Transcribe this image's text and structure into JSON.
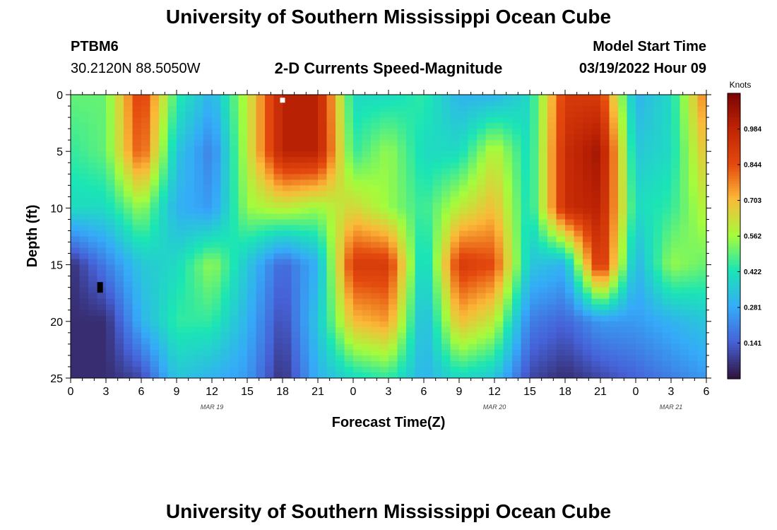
{
  "header": {
    "title": "University of Southern Mississippi Ocean Cube",
    "station": "PTBM6",
    "coords": "30.2120N  88.5050W",
    "subtitle": "2-D Currents Speed-Magnitude",
    "model_label": "Model Start Time",
    "model_time": "03/19/2022 Hour 09"
  },
  "footer": {
    "title": "University of Southern Mississippi Ocean Cube"
  },
  "chart_data": {
    "type": "heatmap",
    "title": "2-D Currents Speed-Magnitude",
    "xlabel": "Forecast Time(Z)",
    "ylabel": "Depth (ft)",
    "x_range_hours": [
      0,
      54
    ],
    "x_tick_labels": [
      "0",
      "3",
      "6",
      "9",
      "12",
      "15",
      "18",
      "21",
      "0",
      "3",
      "6",
      "9",
      "12",
      "15",
      "18",
      "21",
      "0",
      "3",
      "6"
    ],
    "date_labels": [
      {
        "label": "MAR 19",
        "hour": 12
      },
      {
        "label": "MAR 20",
        "hour": 36
      },
      {
        "label": "MAR 21",
        "hour": 51
      }
    ],
    "ylim": [
      0,
      25
    ],
    "y_ticks": [
      0,
      5,
      10,
      15,
      20,
      25
    ],
    "colorbar": {
      "unit": "Knots",
      "range": [
        0,
        1.125
      ],
      "ticks": [
        "0.984",
        "0.844",
        "0.703",
        "0.562",
        "0.422",
        "0.281",
        "0.141"
      ],
      "tick_values": [
        0.984,
        0.844,
        0.703,
        0.562,
        0.422,
        0.281,
        0.141
      ]
    },
    "depths_ft": [
      0,
      5,
      10,
      15,
      20,
      25
    ],
    "forecast_hours": [
      0,
      3,
      6,
      9,
      12,
      15,
      18,
      21,
      24,
      27,
      30,
      33,
      36,
      39,
      42,
      45,
      48,
      51,
      54
    ],
    "speed_knots": [
      [
        0.5,
        0.5,
        0.9,
        0.45,
        0.3,
        0.6,
        1.0,
        1.0,
        0.4,
        0.4,
        0.45,
        0.3,
        0.3,
        0.4,
        0.9,
        0.9,
        0.3,
        0.4,
        0.8
      ],
      [
        0.45,
        0.5,
        0.85,
        0.35,
        0.2,
        0.6,
        1.0,
        1.0,
        0.45,
        0.55,
        0.4,
        0.4,
        0.6,
        0.4,
        0.95,
        1.05,
        0.35,
        0.4,
        0.7
      ],
      [
        0.4,
        0.4,
        0.55,
        0.3,
        0.25,
        0.55,
        0.6,
        0.55,
        0.65,
        0.55,
        0.45,
        0.6,
        0.7,
        0.4,
        0.95,
        1.0,
        0.4,
        0.45,
        0.6
      ],
      [
        0.05,
        0.2,
        0.35,
        0.4,
        0.55,
        0.35,
        0.15,
        0.3,
        0.9,
        0.9,
        0.35,
        0.9,
        0.85,
        0.35,
        0.3,
        0.95,
        0.3,
        0.55,
        0.5
      ],
      [
        0.05,
        0.05,
        0.3,
        0.45,
        0.45,
        0.3,
        0.1,
        0.35,
        0.7,
        0.75,
        0.3,
        0.7,
        0.6,
        0.2,
        0.15,
        0.25,
        0.25,
        0.3,
        0.35
      ],
      [
        0.05,
        0.05,
        0.1,
        0.35,
        0.3,
        0.25,
        0.05,
        0.3,
        0.4,
        0.45,
        0.3,
        0.4,
        0.35,
        0.1,
        0.05,
        0.1,
        0.15,
        0.2,
        0.25
      ]
    ],
    "markers": [
      {
        "name": "black-marker",
        "hour": 2.5,
        "depth_ft": 17
      },
      {
        "name": "white-marker",
        "hour": 18,
        "depth_ft": 0.3
      }
    ]
  }
}
